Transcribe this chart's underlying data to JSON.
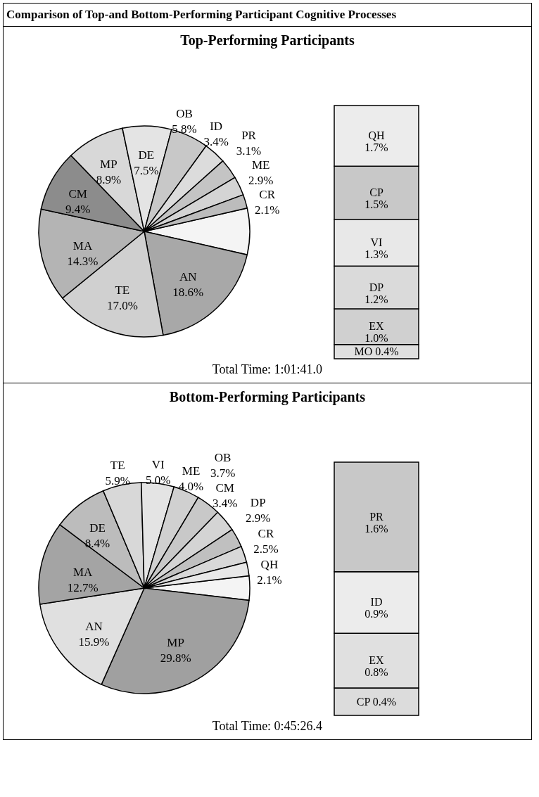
{
  "chart_data": [
    {
      "type": "pie",
      "title": "Comparison of Top-and Bottom-Performing Participant Cognitive Processes",
      "subtitle": "Top-Performing Participants",
      "categories": [
        null,
        "AN",
        "TE",
        "MA",
        "CM",
        "MP",
        "DE",
        "OB",
        "ID",
        "PR",
        "ME",
        "CR"
      ],
      "values": [
        7.1,
        18.6,
        17.0,
        14.3,
        9.4,
        8.9,
        7.5,
        5.8,
        3.4,
        3.1,
        2.9,
        2.1
      ],
      "value_labels": [
        null,
        "18.6%",
        "17.0%",
        "14.3%",
        "9.4%",
        "8.9%",
        "7.5%",
        "5.8%",
        "3.4%",
        "3.1%",
        "2.9%",
        "2.1%"
      ],
      "colors": [
        "#f4f4f4",
        "#a8a8a8",
        "#d0d0d0",
        "#b4b4b4",
        "#8c8c8c",
        "#d8d8d8",
        "#e4e4e4",
        "#c8c8c8",
        "#dcdcdc",
        "#c4c4c4",
        "#d4d4d4",
        "#bcbcbc"
      ],
      "annotations": [
        "Total Time: 1:01:41.0"
      ]
    },
    {
      "type": "bar",
      "stacked": true,
      "categories": [
        null
      ],
      "series": [
        {
          "name": "MO",
          "color": "#e0e0e0",
          "values": [
            0.4
          ],
          "value_labels": [
            "0.4%"
          ]
        },
        {
          "name": "EX",
          "color": "#d0d0d0",
          "values": [
            1.0
          ],
          "value_labels": [
            "1.0%"
          ]
        },
        {
          "name": "DP",
          "color": "#dadada",
          "values": [
            1.2
          ],
          "value_labels": [
            "1.2%"
          ]
        },
        {
          "name": "VI",
          "color": "#e8e8e8",
          "values": [
            1.3
          ],
          "value_labels": [
            "1.3%"
          ]
        },
        {
          "name": "CP",
          "color": "#c8c8c8",
          "values": [
            1.5
          ],
          "value_labels": [
            "1.5%"
          ]
        },
        {
          "name": "QH",
          "color": "#ececec",
          "values": [
            1.7
          ],
          "value_labels": [
            "1.7%"
          ]
        }
      ]
    },
    {
      "type": "pie",
      "title": "Bottom-Performing Participants",
      "categories": [
        null,
        "MP",
        "AN",
        "MA",
        "DE",
        "TE",
        "VI",
        "ME",
        "OB",
        "CM",
        "DP",
        "CR",
        "QH"
      ],
      "values": [
        3.7,
        29.8,
        15.9,
        12.7,
        8.4,
        5.9,
        5.0,
        4.0,
        3.7,
        3.4,
        2.9,
        2.5,
        2.1
      ],
      "value_labels": [
        null,
        "29.8%",
        "15.9%",
        "12.7%",
        "8.4%",
        "5.9%",
        "5.0%",
        "4.0%",
        "3.7%",
        "3.4%",
        "2.9%",
        "2.5%",
        "2.1%"
      ],
      "colors": [
        "#f4f4f4",
        "#a0a0a0",
        "#e0e0e0",
        "#a4a4a4",
        "#bcbcbc",
        "#d8d8d8",
        "#e4e4e4",
        "#d0d0d0",
        "#c8c8c8",
        "#d4d4d4",
        "#c0c0c0",
        "#d8d8d8",
        "#e8e8e8"
      ],
      "annotations": [
        "Total Time: 0:45:26.4"
      ]
    },
    {
      "type": "bar",
      "stacked": true,
      "categories": [
        null
      ],
      "series": [
        {
          "name": "CP",
          "color": "#dcdcdc",
          "values": [
            0.4
          ],
          "value_labels": [
            "0.4%"
          ]
        },
        {
          "name": "EX",
          "color": "#e0e0e0",
          "values": [
            0.8
          ],
          "value_labels": [
            "0.8%"
          ]
        },
        {
          "name": "ID",
          "color": "#ececec",
          "values": [
            0.9
          ],
          "value_labels": [
            "0.9%"
          ]
        },
        {
          "name": "PR",
          "color": "#c8c8c8",
          "values": [
            1.6
          ],
          "value_labels": [
            "1.6%"
          ]
        }
      ]
    }
  ]
}
